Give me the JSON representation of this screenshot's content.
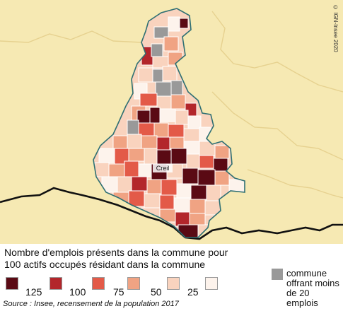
{
  "map": {
    "copyright": "© IGN-Insee 2020",
    "city_label": "Creil"
  },
  "legend": {
    "title_line1": "Nombre d'emplois présents dans la commune pour",
    "title_line2": "100 actifs occupés résidant dans la commune",
    "classes": [
      {
        "color": "#5a0a14",
        "label": "125"
      },
      {
        "color": "#b3262b",
        "label": "100"
      },
      {
        "color": "#e35a48",
        "label": "75"
      },
      {
        "color": "#f0a383",
        "label": "50"
      },
      {
        "color": "#f9d3be",
        "label": "25"
      },
      {
        "color": "#fdf3ec",
        "label": ""
      }
    ],
    "grey_label": "commune offrant moins de 20 emplois",
    "grey_color": "#999999"
  },
  "source": "Source : Insee, recensement de la population 2017"
}
